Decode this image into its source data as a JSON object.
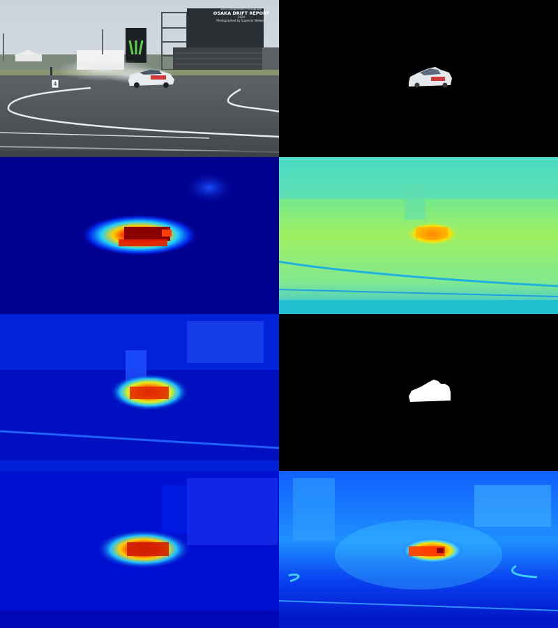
{
  "photo": {
    "overlay_line1": "Drift Competition Photograph",
    "overlay_title": "OSAKA DRIFT REPORT",
    "overlay_line3": "2024",
    "overlay_line4": "Photographed by Supercar Network",
    "sign_number": "4"
  },
  "panels": [
    {
      "id": "source-photo",
      "kind": "photograph"
    },
    {
      "id": "masked-car",
      "kind": "masked-object"
    },
    {
      "id": "saliency-map-a",
      "kind": "jet-heatmap"
    },
    {
      "id": "saliency-map-b",
      "kind": "jet-heatmap"
    },
    {
      "id": "saliency-map-c",
      "kind": "jet-heatmap"
    },
    {
      "id": "binary-mask",
      "kind": "binary-mask"
    },
    {
      "id": "saliency-map-d",
      "kind": "jet-heatmap"
    },
    {
      "id": "saliency-map-e",
      "kind": "jet-heatmap"
    }
  ],
  "colors": {
    "jet_dark_blue": "#00008f",
    "jet_blue": "#0000ff",
    "jet_cyan": "#00ffff",
    "jet_yellow": "#ffff00",
    "jet_red": "#ff0000",
    "jet_dark_red": "#800000"
  }
}
